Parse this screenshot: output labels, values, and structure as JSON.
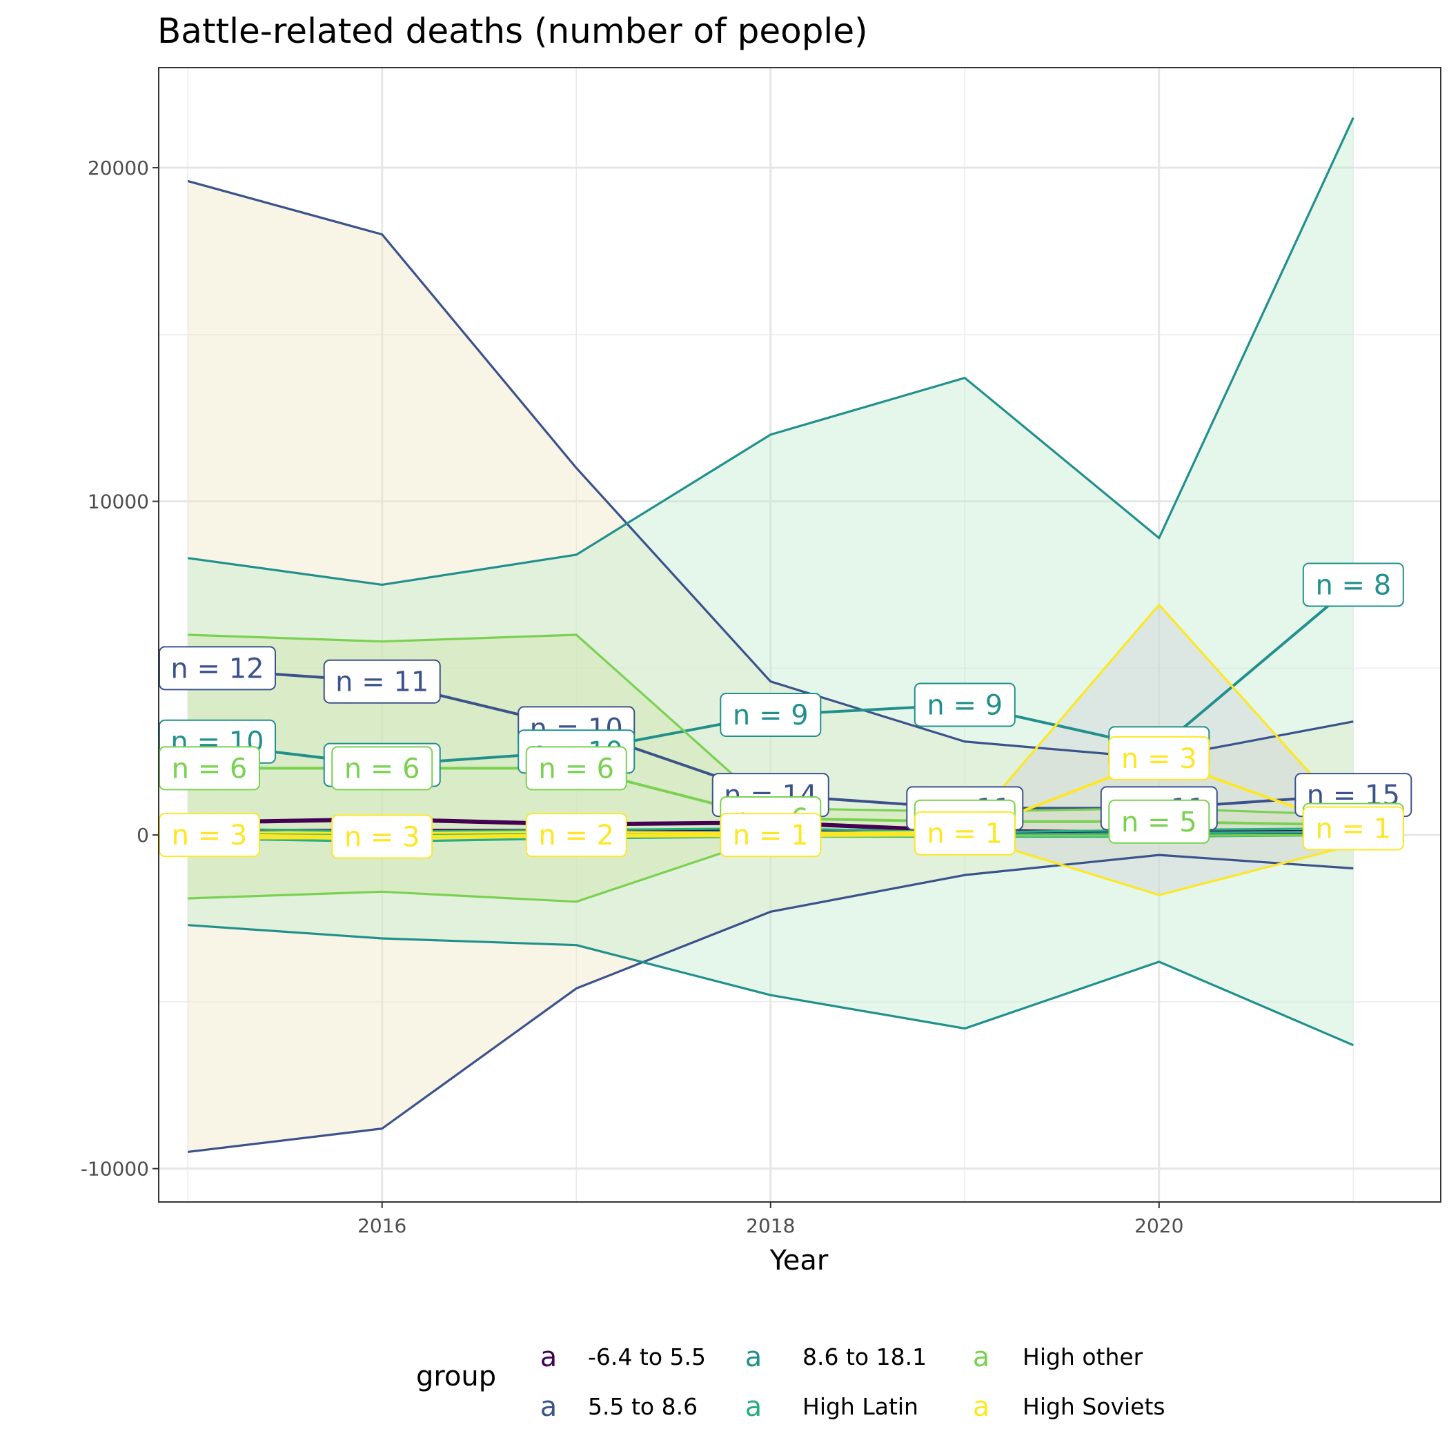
{
  "chart_data": {
    "type": "line",
    "title": "Battle-related deaths (number of people)",
    "xlabel": "Year",
    "ylabel": "",
    "xlim": [
      2014.85,
      2021.45
    ],
    "ylim": [
      -11000,
      23000
    ],
    "x_ticks": [
      2016,
      2018,
      2020
    ],
    "y_ticks": [
      -10000,
      0,
      10000,
      20000
    ],
    "grid": true,
    "legend": {
      "title": "group",
      "placement": "bottom",
      "key_glyph": "a"
    },
    "years": [
      2015,
      2016,
      2017,
      2018,
      2019,
      2020,
      2021
    ],
    "series": [
      {
        "name": "-6.4 to 5.5",
        "color": "#440154",
        "mean": [
          350,
          450,
          300,
          350,
          100,
          50,
          80
        ],
        "upper": [
          400,
          500,
          350,
          400,
          150,
          100,
          120
        ],
        "lower": [
          150,
          150,
          150,
          150,
          50,
          0,
          40
        ],
        "n_labels": []
      },
      {
        "name": "5.5 to 8.6",
        "color": "#3B528B",
        "mean": [
          5000,
          4600,
          3200,
          1200,
          800,
          800,
          1200
        ],
        "upper": [
          19600,
          18000,
          11000,
          4600,
          2800,
          2300,
          3400
        ],
        "lower": [
          -9500,
          -8800,
          -4600,
          -2300,
          -1200,
          -600,
          -1000
        ],
        "n_labels": [
          "n = 12",
          "n = 11",
          "n = 10",
          "n = 14",
          "n = 11",
          "n = 11",
          "n = 15"
        ]
      },
      {
        "name": "8.6 to 18.1",
        "color": "#21908C",
        "mean": [
          2800,
          2100,
          2500,
          3600,
          3900,
          2600,
          7500
        ],
        "upper": [
          8300,
          7500,
          8400,
          12000,
          13700,
          8900,
          21500
        ],
        "lower": [
          -2700,
          -3100,
          -3300,
          -4800,
          -5800,
          -3800,
          -6300
        ],
        "n_labels": [
          "n = 10",
          "n = 10",
          "n = 10",
          "n = 9",
          "n = 9",
          "n = 3",
          "n = 8"
        ]
      },
      {
        "name": "High Latin",
        "color": "#27AD81",
        "mean": [
          100,
          0,
          50,
          100,
          0,
          50,
          100
        ],
        "upper": [
          200,
          100,
          150,
          200,
          80,
          150,
          200
        ],
        "lower": [
          -100,
          -200,
          -100,
          -50,
          -50,
          -50,
          0
        ],
        "n_labels": []
      },
      {
        "name": "High other",
        "color": "#7AD151",
        "mean": [
          2000,
          2000,
          2000,
          500,
          400,
          400,
          300
        ],
        "upper": [
          6000,
          5800,
          6000,
          800,
          700,
          800,
          600
        ],
        "lower": [
          -1900,
          -1700,
          -2000,
          -50,
          -20,
          -20,
          0
        ],
        "n_labels": [
          "n = 6",
          "n = 6",
          "n = 6",
          "n = 6",
          "n = 5",
          "n = 5",
          "n = 6"
        ]
      },
      {
        "name": "High Soviets",
        "color": "#FDE725",
        "mean": [
          0,
          -50,
          0,
          0,
          50,
          2300,
          200
        ],
        "upper": [
          100,
          50,
          100,
          50,
          100,
          6900,
          400
        ],
        "lower": [
          -100,
          -100,
          -50,
          -30,
          0,
          -1800,
          -300
        ],
        "n_labels": [
          "n = 3",
          "n = 3",
          "n = 2",
          "n = 1",
          "n = 1",
          "n = 3",
          "n = 1"
        ]
      }
    ]
  },
  "legend_rows": [
    [
      "-6.4 to 5.5",
      "8.6 to 18.1",
      "High other"
    ],
    [
      "5.5 to 8.6",
      "High Latin",
      "High Soviets"
    ]
  ]
}
